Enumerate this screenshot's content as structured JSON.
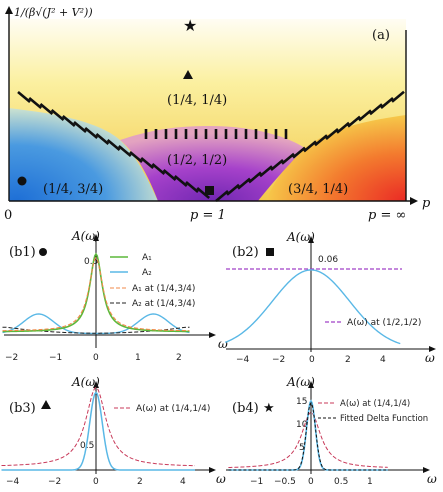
{
  "panel_a": {
    "y_axis_label": "1/(β√(J² + V²))",
    "x_axis_label": "p",
    "tag": "(a)",
    "tick_0": "0",
    "tick_p1": "p = 1",
    "tick_pinf": "p = ∞",
    "regions": [
      "(1/4, 1/4)",
      "(1/2, 1/2)",
      "(1/4, 3/4)",
      "(3/4, 1/4)"
    ],
    "colors": {
      "blue": "#2f7fd8",
      "yellow": "#f6e25a",
      "purple": "#8e2bc4",
      "red": "#ee3b2e"
    }
  },
  "panel_b1": {
    "tag": "(b1)",
    "ylabel": "A(ω)",
    "xlabel": "ω",
    "peak_label": "0.5",
    "x_ticks": [
      "−2",
      "−1",
      "0",
      "1",
      "2"
    ],
    "legend": [
      "A₁",
      "A₂",
      "A₁ at (1/4,3/4)",
      "A₂ at (1/4,3/4)"
    ]
  },
  "panel_b2": {
    "tag": "(b2)",
    "ylabel": "A(ω)",
    "xlabel": "ω",
    "peak_label": "0.06",
    "x_ticks": [
      "−4",
      "−2",
      "0",
      "2",
      "4"
    ],
    "legend": [
      "A(ω) at (1/2,1/2)"
    ]
  },
  "panel_b3": {
    "tag": "(b3)",
    "ylabel": "A(ω)",
    "xlabel": "ω",
    "peak_label": "0.5",
    "x_ticks": [
      "−4",
      "−2",
      "0",
      "2",
      "4"
    ],
    "legend": [
      "A(ω) at (1/4,1/4)"
    ]
  },
  "panel_b4": {
    "tag": "(b4)",
    "ylabel": "A(ω)",
    "xlabel": "ω",
    "y_ticks": [
      "15",
      "10",
      "5"
    ],
    "x_ticks": [
      "−1",
      "−0.5",
      "0",
      "0.5",
      "1"
    ],
    "legend": [
      "A(ω) at (1/4,1/4)",
      "Fitted Delta Function"
    ]
  }
}
